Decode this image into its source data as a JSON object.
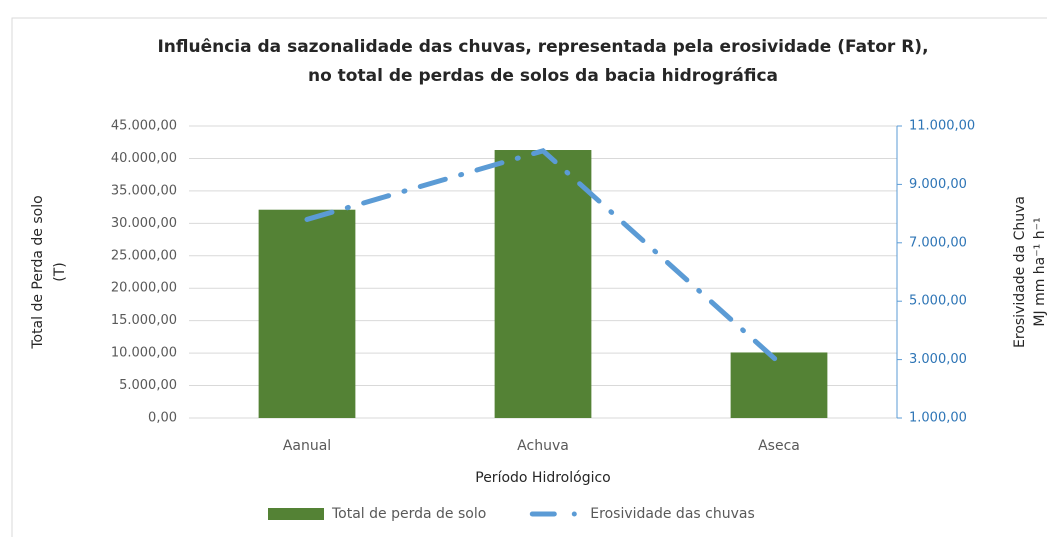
{
  "chart_data": {
    "type": "bar-line",
    "title": [
      "Influência da sazonalidade das chuvas, representada pela erosividade (Fator R),",
      "no total de perdas de solos da bacia hidrográfica"
    ],
    "x_label": "Período Hidrológico",
    "y_label": [
      "Total de Perda de solo",
      "(T)"
    ],
    "y2_label": [
      "Erosividade da Chuva",
      "MJ mm ha⁻¹ h⁻¹"
    ],
    "categories": [
      "Aanual",
      "Achuva",
      "Aseca"
    ],
    "series": [
      {
        "name": "Total de perda de solo",
        "color": "#548235",
        "kind": "bar",
        "values": [
          32100,
          41300,
          10100
        ]
      },
      {
        "name": "Erosividade das chuvas",
        "color": "#5b9bd5",
        "kind": "line",
        "axis": "y2",
        "values": [
          7800,
          10150,
          2900
        ]
      }
    ],
    "ylim": [
      0,
      45000
    ],
    "yticks": [
      {
        "value": 0,
        "label": "0,00"
      },
      {
        "value": 5000,
        "label": "5.000,00"
      },
      {
        "value": 10000,
        "label": "10.000,00"
      },
      {
        "value": 15000,
        "label": "15.000,00"
      },
      {
        "value": 20000,
        "label": "20.000,00"
      },
      {
        "value": 25000,
        "label": "25.000,00"
      },
      {
        "value": 30000,
        "label": "30.000,00"
      },
      {
        "value": 35000,
        "label": "35.000,00"
      },
      {
        "value": 40000,
        "label": "40.000,00"
      },
      {
        "value": 45000,
        "label": "45.000,00"
      }
    ],
    "y2lim": [
      1000,
      11000
    ],
    "y2ticks": [
      {
        "value": 1000,
        "label": "1.000,00"
      },
      {
        "value": 3000,
        "label": "3.000,00"
      },
      {
        "value": 5000,
        "label": "5.000,00"
      },
      {
        "value": 7000,
        "label": "7.000,00"
      },
      {
        "value": 9000,
        "label": "9.000,00"
      },
      {
        "value": 11000,
        "label": "11.000,00"
      }
    ],
    "grid": true,
    "legend": "bottom"
  }
}
